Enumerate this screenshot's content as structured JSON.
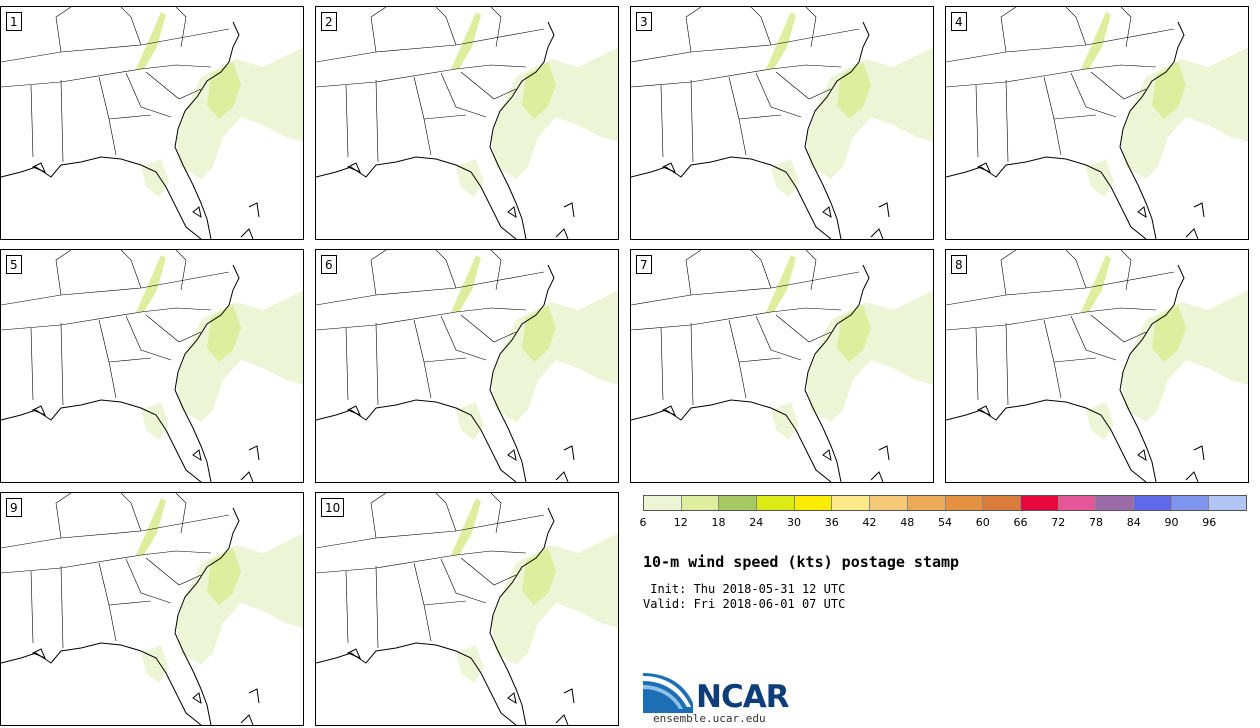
{
  "panels": [
    {
      "label": "1"
    },
    {
      "label": "2"
    },
    {
      "label": "3"
    },
    {
      "label": "4"
    },
    {
      "label": "5"
    },
    {
      "label": "6"
    },
    {
      "label": "7"
    },
    {
      "label": "8"
    },
    {
      "label": "9"
    },
    {
      "label": "10"
    }
  ],
  "colorbar": {
    "colors": [
      "#eef5d6",
      "#deee9e",
      "#a6c963",
      "#dcea16",
      "#fbed00",
      "#fce98a",
      "#f6c979",
      "#ecaa58",
      "#e49241",
      "#d97c3c",
      "#e9083e",
      "#e55799",
      "#9c6aa7",
      "#5f6ae9",
      "#7f96ef",
      "#b2c5f5"
    ],
    "tick_labels": [
      "6",
      "12",
      "18",
      "24",
      "30",
      "36",
      "42",
      "48",
      "54",
      "60",
      "66",
      "72",
      "78",
      "84",
      "90",
      "96"
    ]
  },
  "title": "10-m wind speed (kts) postage stamp",
  "init_line": " Init: Thu 2018-05-31 12 UTC",
  "valid_line": "Valid: Fri 2018-06-01 07 UTC",
  "logo": {
    "text": "NCAR",
    "url": "ensemble.ucar.edu",
    "color": "#0e3e7a"
  }
}
